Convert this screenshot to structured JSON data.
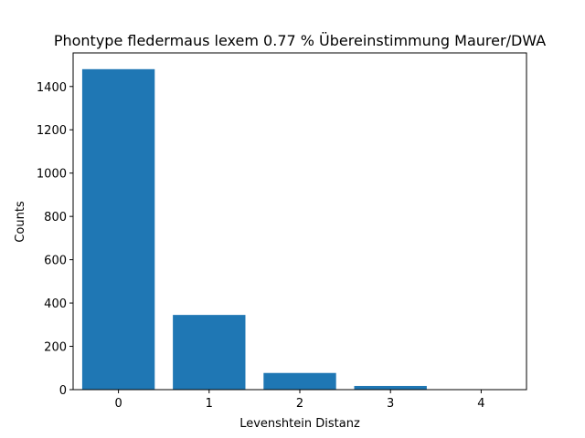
{
  "chart_data": {
    "type": "bar",
    "title": "Phontype fledermaus lexem 0.77 % Übereinstimmung Maurer/DWA",
    "xlabel": "Levenshtein Distanz",
    "ylabel": "Counts",
    "categories": [
      "0",
      "1",
      "2",
      "3",
      "4"
    ],
    "x": [
      0,
      1,
      2,
      3,
      4
    ],
    "values": [
      1480,
      345,
      77,
      17,
      2
    ],
    "xlim": [
      -0.5,
      4.5
    ],
    "ylim": [
      0,
      1555
    ],
    "yticks": [
      0,
      200,
      400,
      600,
      800,
      1000,
      1200,
      1400
    ],
    "grid": false,
    "bar_color": "#1f77b4"
  }
}
